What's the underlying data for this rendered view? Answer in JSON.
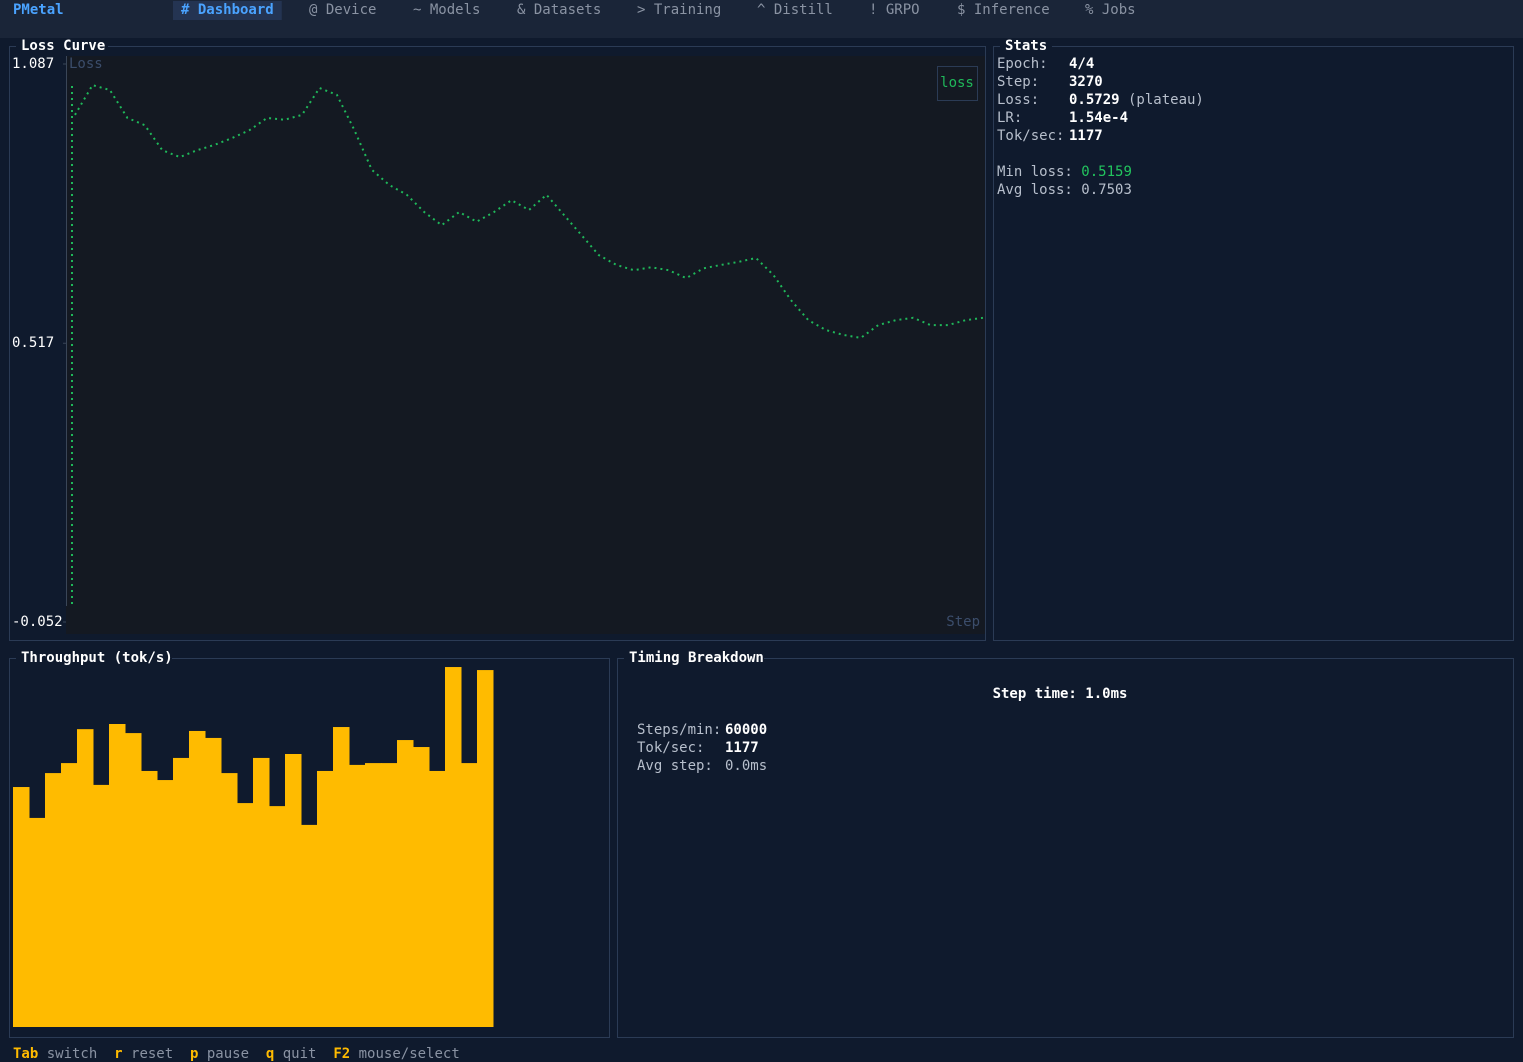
{
  "nav": {
    "brand": "PMetal",
    "tabs": [
      "# Dashboard",
      "@ Device",
      "~ Models",
      "& Datasets",
      "> Training",
      "^ Distill",
      "! GRPO",
      "$ Inference",
      "% Jobs"
    ]
  },
  "chart_data": [
    {
      "type": "line",
      "title": "Loss Curve",
      "y_label": "Loss",
      "x_label": "Step",
      "series": [
        {
          "name": "loss",
          "color": "#1fb85a",
          "values": [
            0.983,
            1.044,
            1.034,
            0.977,
            0.962,
            0.911,
            0.897,
            0.911,
            0.922,
            0.936,
            0.952,
            0.977,
            0.973,
            0.983,
            1.038,
            1.024,
            0.952,
            0.871,
            0.84,
            0.82,
            0.785,
            0.758,
            0.785,
            0.765,
            0.785,
            0.809,
            0.789,
            0.82,
            0.779,
            0.738,
            0.697,
            0.677,
            0.666,
            0.672,
            0.666,
            0.65,
            0.67,
            0.677,
            0.683,
            0.691,
            0.656,
            0.605,
            0.564,
            0.544,
            0.534,
            0.528,
            0.554,
            0.564,
            0.569,
            0.554,
            0.554,
            0.564,
            0.569
          ]
        }
      ],
      "ylim": [
        -0.052,
        1.087
      ],
      "yticks": [
        1.087,
        0.517,
        -0.052
      ]
    },
    {
      "type": "bar",
      "title": "Throughput (tok/s)",
      "color": "#ffbb00",
      "values": [
        792,
        690,
        838,
        871,
        983,
        799,
        1000,
        970,
        845,
        815,
        888,
        977,
        954,
        838,
        739,
        888,
        729,
        901,
        667,
        845,
        990,
        865,
        871,
        871,
        947,
        924,
        845,
        1188,
        871,
        1178
      ],
      "ylim": [
        0,
        1200
      ]
    }
  ],
  "stats": {
    "title": "Stats",
    "rows": [
      {
        "label": "Epoch:",
        "value": "4/4"
      },
      {
        "label": "Step:",
        "value": "3270"
      },
      {
        "label": "Loss:",
        "value": "0.5729",
        "note": "(plateau)"
      },
      {
        "label": "LR:",
        "value": "1.54e-4"
      },
      {
        "label": "Tok/sec:",
        "value": "1177"
      }
    ],
    "summary": [
      {
        "label": "Min loss:",
        "value": "0.5159"
      },
      {
        "label": "Avg loss:",
        "value": "0.7503"
      }
    ]
  },
  "timing": {
    "title": "Timing Breakdown",
    "step_time": "Step time: 1.0ms",
    "rows": [
      {
        "label": "Steps/min:",
        "value": "60000"
      },
      {
        "label": "Tok/sec:",
        "value": "1177"
      },
      {
        "label": "Avg step:",
        "value": "0.0ms"
      }
    ]
  },
  "footer": [
    {
      "key": "Tab",
      "action": "switch"
    },
    {
      "key": "r",
      "action": "reset"
    },
    {
      "key": "p",
      "action": "pause"
    },
    {
      "key": "q",
      "action": "quit"
    },
    {
      "key": "F2",
      "action": "mouse/select"
    }
  ]
}
